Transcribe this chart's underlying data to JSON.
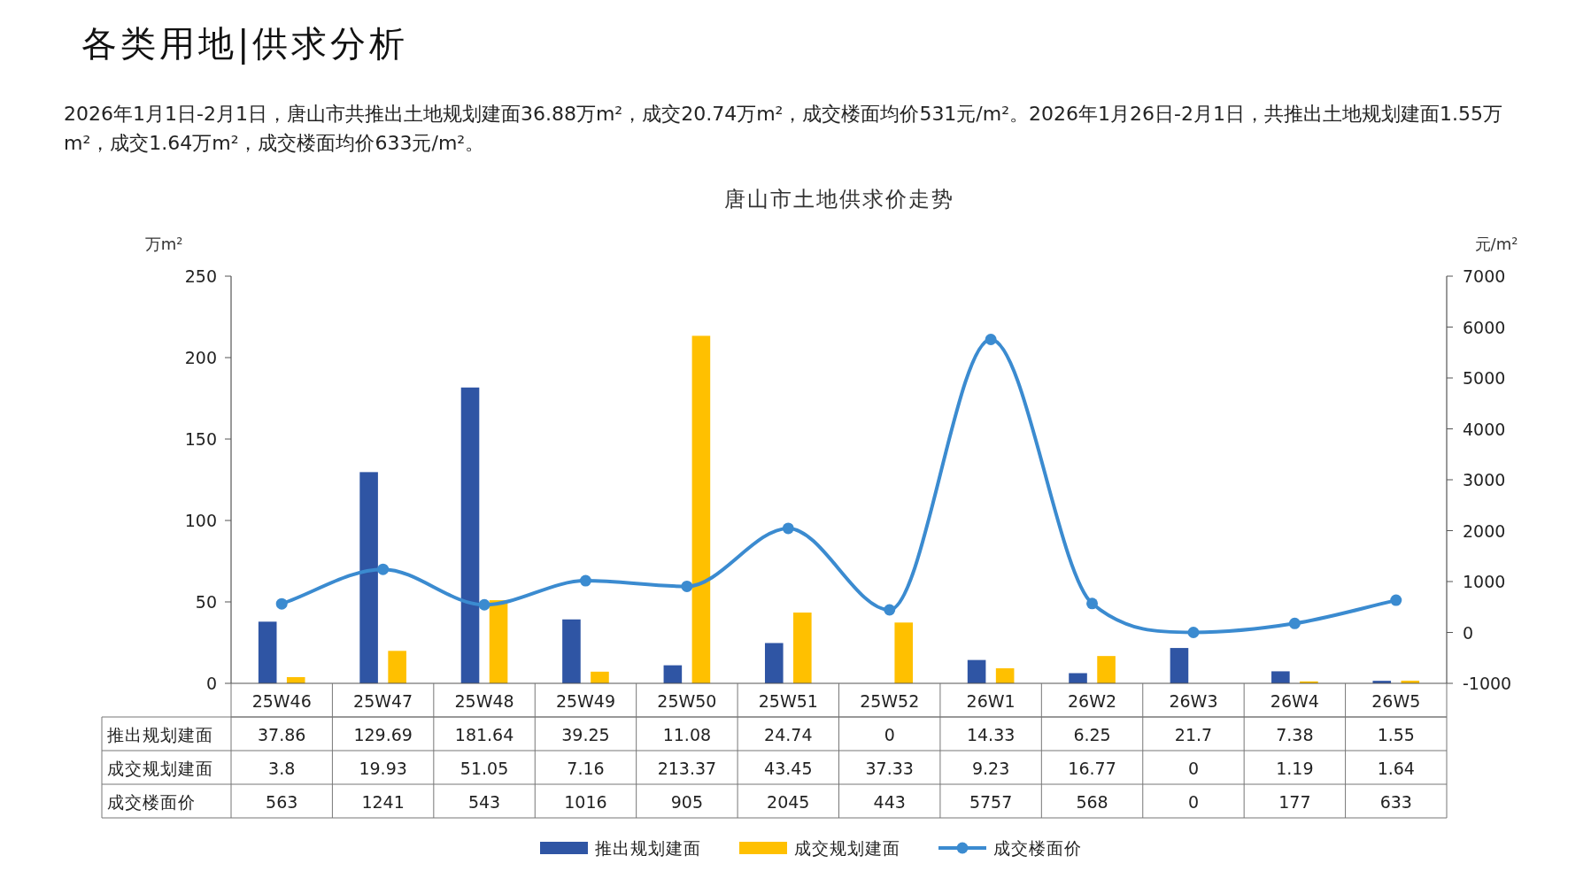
{
  "chart_data": {
    "type": "bar",
    "title": "唐山市土地供求价走势",
    "ylabel": "万m²",
    "y2label": "元/m²",
    "annotations": [
      "各类用地|供求分析",
      "2026年1月1日-2月1日，唐山市共推出土地规划建面36.88万m²，成交20.74万m²，成交楼面均价531元/m²。2026年1月26日-2月1日，共推出土地规划建面1.55万m²，成交1.64万m²，成交楼面均价633元/m²。"
    ],
    "categories": [
      "25W46",
      "25W47",
      "25W48",
      "25W49",
      "25W50",
      "25W51",
      "25W52",
      "26W1",
      "26W2",
      "26W3",
      "26W4",
      "26W5"
    ],
    "series": [
      {
        "name": "推出规划建面",
        "color": "#2f55a4",
        "values": [
          37.86,
          129.69,
          181.64,
          39.25,
          11.08,
          24.74,
          0,
          14.33,
          6.25,
          21.7,
          7.38,
          1.55
        ]
      },
      {
        "name": "成交规划建面",
        "color": "#ffc000",
        "values": [
          3.8,
          19.93,
          51.05,
          7.16,
          213.37,
          43.45,
          37.33,
          9.23,
          16.77,
          0,
          1.19,
          1.64
        ]
      },
      {
        "name": "成交楼面价",
        "type": "line",
        "axis": "y2",
        "color": "#3b8bd0",
        "marker": "circle",
        "values": [
          563,
          1241,
          543,
          1016,
          905,
          2045,
          443,
          5757,
          568,
          0,
          177,
          633
        ]
      }
    ],
    "ylim": [
      0,
      250
    ],
    "yticks": [
      0,
      50,
      100,
      150,
      200,
      250
    ],
    "y2lim": [
      -1000,
      7000
    ],
    "y2ticks": [
      -1000,
      0,
      1000,
      2000,
      3000,
      4000,
      5000,
      6000,
      7000
    ],
    "data_labels": true,
    "legend": "bottom",
    "grid": false
  }
}
